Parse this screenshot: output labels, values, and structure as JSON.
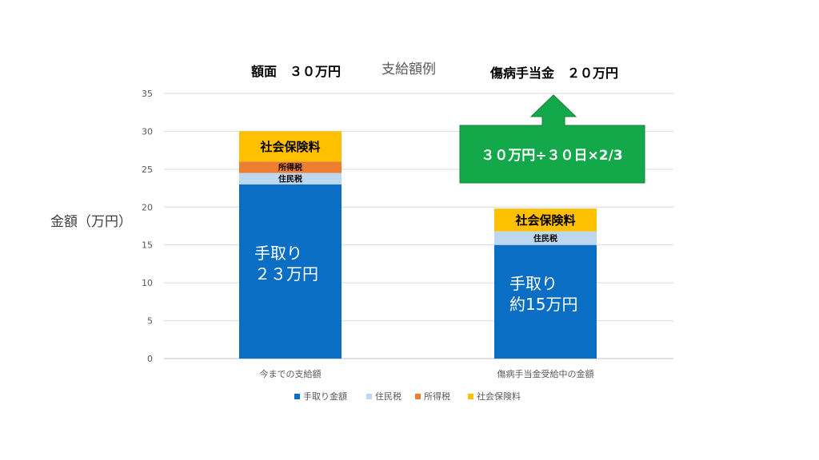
{
  "chart_data": {
    "type": "bar",
    "title": "支給額例",
    "ylabel": "金額（万円）",
    "xlabel": "",
    "ylim": [
      0,
      35
    ],
    "yticks": [
      0,
      5,
      10,
      15,
      20,
      25,
      30,
      35
    ],
    "grid": true,
    "stacked": true,
    "legend_position": "bottom",
    "categories": [
      "今までの支給額",
      "傷病手当金受給中の金額"
    ],
    "series": [
      {
        "name": "手取り金額",
        "color": "#0A6EC4",
        "values": [
          23,
          15
        ]
      },
      {
        "name": "住民税",
        "color": "#BDD7EE",
        "values": [
          1.5,
          1.8
        ]
      },
      {
        "name": "所得税",
        "color": "#ED7D31",
        "values": [
          1.5,
          0
        ]
      },
      {
        "name": "社会保険料",
        "color": "#FFC000",
        "values": [
          4,
          3
        ]
      }
    ],
    "segment_labels": [
      [
        "手取り\n２３万円",
        "住民税",
        "所得税",
        "社会保険料"
      ],
      [
        "手取り\n約15万円",
        "住民税",
        "",
        "社会保険料"
      ]
    ]
  },
  "annotations": {
    "left_header": "額面　３０万円",
    "right_header": "傷病手当金　２０万円",
    "callout_text": "３０万円÷３０日×2/3",
    "callout_color": "#13A84A"
  }
}
